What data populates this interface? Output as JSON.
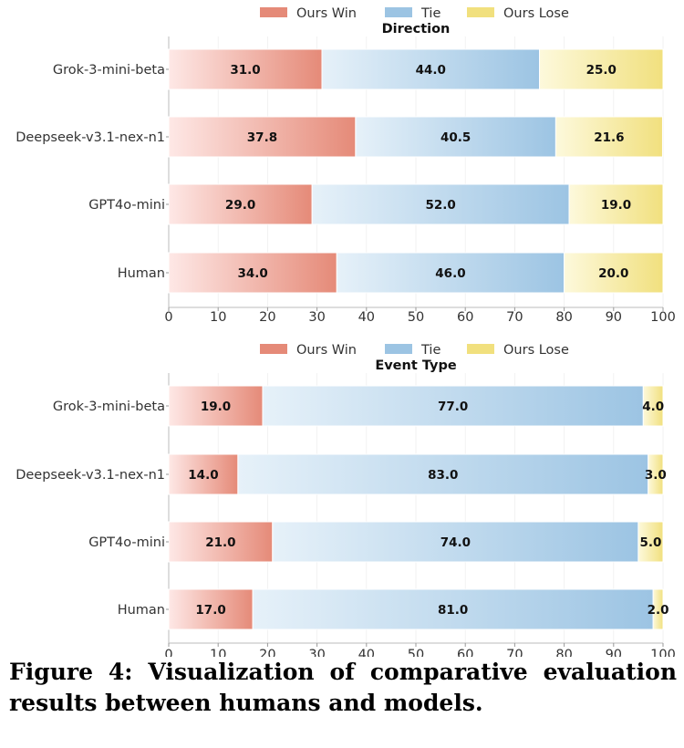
{
  "chart_data": [
    {
      "type": "bar",
      "stacked": true,
      "orientation": "horizontal",
      "title": "Direction",
      "legend": [
        "Ours Win",
        "Tie",
        "Ours Lose"
      ],
      "legend_position": "top",
      "categories": [
        "Grok-3-mini-beta",
        "Deepseek-v3.1-nex-n1",
        "GPT4o-mini",
        "Human"
      ],
      "series": [
        {
          "name": "Ours Win",
          "values": [
            31.0,
            37.8,
            29.0,
            34.0
          ],
          "labels": [
            "31.0",
            "37.8",
            "29.0",
            "34.0"
          ]
        },
        {
          "name": "Tie",
          "values": [
            44.0,
            40.5,
            52.0,
            46.0
          ],
          "labels": [
            "44.0",
            "40.5",
            "52.0",
            "46.0"
          ]
        },
        {
          "name": "Ours Lose",
          "values": [
            25.0,
            21.6,
            19.0,
            20.0
          ],
          "labels": [
            "25.0",
            "21.6",
            "19.0",
            "20.0"
          ]
        }
      ],
      "xlim": [
        0,
        100
      ],
      "xticks": [
        "0",
        "10",
        "20",
        "30",
        "40",
        "50",
        "60",
        "70",
        "80",
        "90",
        "100"
      ],
      "grid": true
    },
    {
      "type": "bar",
      "stacked": true,
      "orientation": "horizontal",
      "title": "Event Type",
      "legend": [
        "Ours Win",
        "Tie",
        "Ours Lose"
      ],
      "legend_position": "top",
      "categories": [
        "Grok-3-mini-beta",
        "Deepseek-v3.1-nex-n1",
        "GPT4o-mini",
        "Human"
      ],
      "series": [
        {
          "name": "Ours Win",
          "values": [
            19.0,
            14.0,
            21.0,
            17.0
          ],
          "labels": [
            "19.0",
            "14.0",
            "21.0",
            "17.0"
          ]
        },
        {
          "name": "Tie",
          "values": [
            77.0,
            83.0,
            74.0,
            81.0
          ],
          "labels": [
            "77.0",
            "83.0",
            "74.0",
            "81.0"
          ]
        },
        {
          "name": "Ours Lose",
          "values": [
            4.0,
            3.0,
            5.0,
            2.0
          ],
          "labels": [
            "4.0",
            "3.0",
            "5.0",
            "2.0"
          ]
        }
      ],
      "xlim": [
        0,
        100
      ],
      "xticks": [
        "0",
        "10",
        "20",
        "30",
        "40",
        "50",
        "60",
        "70",
        "80",
        "90",
        "100"
      ],
      "grid": true
    }
  ],
  "colors": {
    "win_light": "#fee8e6",
    "win_dark": "#e58a78",
    "tie_light": "#e6f1f9",
    "tie_dark": "#9cc4e3",
    "lose_light": "#fdf9dc",
    "lose_dark": "#f1e07e",
    "axis": "#333333",
    "grid": "#eeeeee"
  },
  "caption": {
    "text": "Figure 4: Visualization of comparative evaluation results between humans and models."
  }
}
